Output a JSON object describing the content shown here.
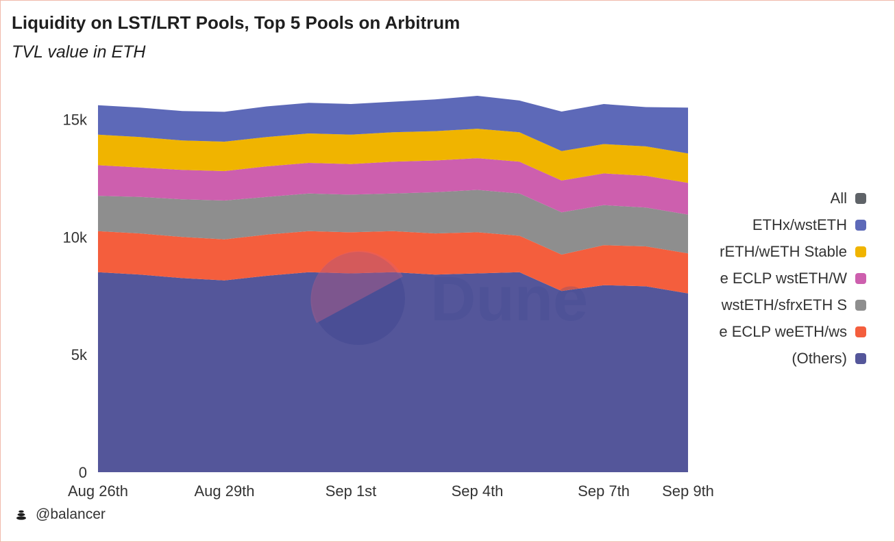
{
  "title": "Liquidity on LST/LRT Pools, Top 5 Pools on Arbitrum",
  "subtitle": "TVL value in ETH",
  "footer": {
    "user": "@balancer",
    "icon": "balancer-logo-icon"
  },
  "watermark": "Dune",
  "legend": [
    {
      "label": "All",
      "color": "#5f6368"
    },
    {
      "label": "ETHx/wstETH",
      "color": "#5d69b8"
    },
    {
      "label": "rETH/wETH Stable",
      "color": "#f0b400"
    },
    {
      "label": "e ECLP wstETH/W",
      "color": "#cd5fae"
    },
    {
      "label": "wstETH/sfrxETH S",
      "color": "#8e8e8e"
    },
    {
      "label": "e ECLP weETH/ws",
      "color": "#f45e3d"
    },
    {
      "label": "(Others)",
      "color": "#54569a"
    }
  ],
  "chart_data": {
    "type": "area",
    "stacked": true,
    "x": [
      "Aug 26th",
      "Aug 27th",
      "Aug 28th",
      "Aug 29th",
      "Aug 30th",
      "Aug 31st",
      "Sep 1st",
      "Sep 2nd",
      "Sep 3rd",
      "Sep 4th",
      "Sep 5th",
      "Sep 6th",
      "Sep 7th",
      "Sep 8th",
      "Sep 9th"
    ],
    "x_ticks": [
      "Aug 26th",
      "Aug 29th",
      "Sep 1st",
      "Sep 4th",
      "Sep 7th",
      "Sep 9th"
    ],
    "y_ticks": [
      "0",
      "5k",
      "10k",
      "15k"
    ],
    "ylim": [
      0,
      16000
    ],
    "grid": false,
    "legend_position": "right",
    "series": [
      {
        "name": "(Others)",
        "color": "#54569a",
        "values": [
          8500,
          8400,
          8250,
          8150,
          8350,
          8500,
          8450,
          8500,
          8400,
          8450,
          8500,
          7700,
          7950,
          7900,
          7600
        ]
      },
      {
        "name": "e ECLP weETH/ws",
        "color": "#f45e3d",
        "values": [
          1750,
          1750,
          1750,
          1750,
          1750,
          1750,
          1750,
          1750,
          1750,
          1750,
          1550,
          1550,
          1700,
          1700,
          1700
        ]
      },
      {
        "name": "wstETH/sfrxETH S",
        "color": "#8e8e8e",
        "values": [
          1500,
          1550,
          1600,
          1650,
          1600,
          1600,
          1600,
          1600,
          1750,
          1800,
          1800,
          1800,
          1700,
          1650,
          1650
        ]
      },
      {
        "name": "e ECLP wstETH/W",
        "color": "#cd5fae",
        "values": [
          1300,
          1250,
          1250,
          1250,
          1300,
          1300,
          1300,
          1350,
          1350,
          1350,
          1350,
          1350,
          1350,
          1350,
          1350
        ]
      },
      {
        "name": "rETH/wETH Stable",
        "color": "#f0b400",
        "values": [
          1300,
          1300,
          1250,
          1250,
          1250,
          1250,
          1250,
          1250,
          1250,
          1250,
          1250,
          1250,
          1250,
          1250,
          1250
        ]
      },
      {
        "name": "ETHx/wstETH",
        "color": "#5d69b8",
        "values": [
          1250,
          1250,
          1250,
          1270,
          1300,
          1300,
          1300,
          1300,
          1350,
          1400,
          1350,
          1680,
          1700,
          1670,
          1950
        ]
      }
    ]
  }
}
